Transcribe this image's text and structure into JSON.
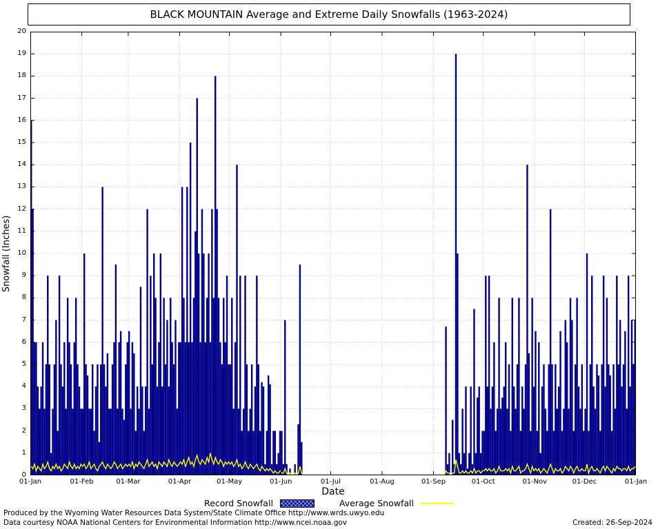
{
  "title": "BLACK MOUNTAIN Average and Extreme Daily Snowfalls (1963-2024)",
  "footer": {
    "line1": "Produced by the Wyoming Water Resources Data System/State Climate Office http://www.wrds.uwyo.edu",
    "line2": "Data courtesy NOAA National Centers for Environmental Information http://www.ncei.noaa.gov",
    "created": "Created: 26-Sep-2024"
  },
  "chart_data": {
    "type": "bar",
    "title": "BLACK MOUNTAIN Average and Extreme Daily Snowfalls (1963-2024)",
    "xlabel": "Date",
    "ylabel": "Snowfall (Inches)",
    "ylim": [
      0,
      20
    ],
    "grid": true,
    "legend_position": "bottom",
    "y_tick_labels": [
      "0",
      "1",
      "2",
      "3",
      "4",
      "5",
      "6",
      "7",
      "8",
      "9",
      "10",
      "11",
      "12",
      "13",
      "14",
      "15",
      "16",
      "17",
      "18",
      "19",
      "20"
    ],
    "x_tick_labels": [
      "01-Jan",
      "01-Feb",
      "01-Mar",
      "01-Apr",
      "01-May",
      "01-Jun",
      "01-Jul",
      "01-Aug",
      "01-Sep",
      "01-Oct",
      "01-Nov",
      "01-Dec",
      "01-Jan"
    ],
    "x_tick_day_index": [
      0,
      31,
      59,
      90,
      120,
      151,
      181,
      212,
      243,
      273,
      304,
      334,
      365
    ],
    "legend": [
      {
        "label": "Record Snowfall",
        "color": "#00008B",
        "type": "bar"
      },
      {
        "label": "Average Snowfall",
        "color": "#FFFF00",
        "type": "line"
      }
    ],
    "series": [
      {
        "name": "Record Snowfall",
        "type": "bar",
        "color": "#00008B",
        "values": [
          16,
          12,
          6,
          6,
          4,
          3,
          4,
          6,
          3,
          5,
          9,
          5,
          1,
          3,
          5,
          7,
          2,
          9,
          5,
          4,
          6,
          3,
          8,
          6,
          5,
          3,
          6,
          8,
          5,
          4,
          3,
          3,
          10,
          5,
          4.5,
          3,
          3,
          5,
          2,
          4,
          5,
          1.5,
          5,
          13,
          5,
          4,
          5.5,
          3,
          3,
          5,
          6,
          9.5,
          3,
          6,
          6.5,
          3,
          2.5,
          5,
          6,
          6.5,
          3,
          6,
          5.5,
          2,
          4,
          3,
          8.5,
          4,
          2,
          4,
          12,
          3,
          9,
          5,
          10,
          8,
          4,
          6,
          10,
          4,
          8,
          5,
          7,
          4,
          8,
          6,
          5,
          7,
          3,
          6,
          6,
          13,
          8,
          6,
          13,
          6,
          15,
          6,
          8,
          11,
          17,
          10,
          6,
          12,
          10,
          6,
          8,
          10,
          6,
          12,
          8,
          18,
          12,
          8,
          6,
          5,
          8,
          6,
          9,
          5,
          5,
          8,
          3,
          6,
          14,
          3,
          9,
          2,
          3,
          9,
          5,
          2,
          3,
          5,
          2,
          4,
          9,
          5,
          2,
          4.2,
          4,
          0.5,
          2,
          4.5,
          4.1,
          0.5,
          2,
          2,
          0.5,
          1,
          2,
          2,
          0.5,
          7,
          0.5,
          0,
          0.3,
          0,
          0,
          0.5,
          0,
          2.3,
          9.5,
          1.5,
          0,
          0,
          0,
          0,
          0,
          0,
          0,
          0,
          0,
          0,
          0,
          0,
          0,
          0,
          0,
          0,
          0,
          0,
          0,
          0,
          0,
          0,
          0,
          0,
          0,
          0,
          0,
          0,
          0,
          0,
          0,
          0,
          0,
          0,
          0,
          0,
          0,
          0,
          0,
          0,
          0,
          0,
          0,
          0,
          0,
          0,
          0,
          0,
          0,
          0,
          0,
          0,
          0,
          0,
          0,
          0,
          0,
          0,
          0,
          0,
          0,
          0,
          0,
          0,
          0,
          0,
          0,
          0,
          0,
          0,
          0,
          0,
          0,
          0,
          0,
          0,
          0,
          0,
          0,
          0,
          0,
          0,
          0,
          0,
          0,
          0,
          6.7,
          0.5,
          1,
          0,
          2.5,
          0.5,
          19,
          10,
          1,
          0.5,
          3,
          1,
          4,
          0.3,
          1,
          4,
          0.5,
          7.5,
          1,
          3.5,
          4,
          1,
          2,
          2,
          9,
          4,
          9,
          3,
          4,
          6,
          2,
          3,
          8,
          3,
          3.5,
          4,
          6,
          3,
          5,
          2,
          8,
          4,
          3,
          5,
          8,
          2,
          4,
          3,
          5,
          14,
          5.5,
          2,
          8,
          4,
          6.5,
          2,
          6,
          1,
          4,
          5,
          3,
          2,
          5,
          12,
          5,
          2,
          5,
          3,
          4,
          6.5,
          2,
          3,
          7,
          6,
          3,
          8,
          7,
          2,
          5,
          8,
          4,
          3,
          5,
          2,
          3,
          10,
          2,
          5,
          9,
          4,
          3,
          5,
          4.5,
          2,
          5,
          9,
          4,
          8,
          5,
          4.5,
          2,
          5,
          3,
          9,
          5,
          7,
          4,
          5,
          6.5,
          3,
          9,
          4,
          7,
          5,
          7
        ]
      },
      {
        "name": "Average Snowfall",
        "type": "line",
        "color": "#FFFF00",
        "values": [
          0.4,
          0.3,
          0.5,
          0.2,
          0.4,
          0.3,
          0.2,
          0.5,
          0.3,
          0.4,
          0.6,
          0.3,
          0.2,
          0.4,
          0.3,
          0.5,
          0.3,
          0.4,
          0.2,
          0.3,
          0.5,
          0.4,
          0.3,
          0.6,
          0.4,
          0.3,
          0.5,
          0.3,
          0.4,
          0.3,
          0.5,
          0.4,
          0.5,
          0.3,
          0.4,
          0.6,
          0.3,
          0.4,
          0.5,
          0.3,
          0.2,
          0.4,
          0.5,
          0.6,
          0.4,
          0.3,
          0.5,
          0.4,
          0.3,
          0.4,
          0.6,
          0.5,
          0.3,
          0.4,
          0.5,
          0.3,
          0.4,
          0.5,
          0.4,
          0.5,
          0.4,
          0.6,
          0.3,
          0.5,
          0.4,
          0.6,
          0.5,
          0.4,
          0.3,
          0.5,
          0.7,
          0.4,
          0.5,
          0.6,
          0.4,
          0.5,
          0.3,
          0.6,
          0.5,
          0.4,
          0.6,
          0.5,
          0.4,
          0.7,
          0.5,
          0.4,
          0.6,
          0.5,
          0.4,
          0.5,
          0.6,
          0.5,
          0.7,
          0.4,
          0.6,
          0.8,
          0.5,
          0.6,
          0.4,
          0.7,
          0.9,
          0.6,
          0.5,
          0.7,
          0.6,
          0.5,
          0.8,
          0.6,
          1,
          0.7,
          0.5,
          0.8,
          0.6,
          0.5,
          0.7,
          0.6,
          0.4,
          0.6,
          0.5,
          0.6,
          0.5,
          0.6,
          0.4,
          0.5,
          0.7,
          0.4,
          0.5,
          0.3,
          0.4,
          0.6,
          0.4,
          0.3,
          0.5,
          0.4,
          0.3,
          0.4,
          0.5,
          0.3,
          0.2,
          0.4,
          0.3,
          0.2,
          0.3,
          0.2,
          0.3,
          0.2,
          0.1,
          0.2,
          0.1,
          0.1,
          0.2,
          0.1,
          0.1,
          0.3,
          0.1,
          0,
          0.1,
          0,
          0,
          0.1,
          0,
          0.1,
          0.4,
          0.1,
          0,
          0,
          0,
          0,
          0,
          0,
          0,
          0,
          0,
          0,
          0,
          0,
          0,
          0,
          0,
          0,
          0,
          0,
          0,
          0,
          0,
          0,
          0,
          0,
          0,
          0,
          0,
          0,
          0,
          0,
          0,
          0,
          0,
          0,
          0,
          0,
          0,
          0,
          0,
          0,
          0,
          0,
          0,
          0,
          0,
          0,
          0,
          0,
          0,
          0,
          0,
          0,
          0,
          0,
          0,
          0,
          0,
          0,
          0,
          0,
          0,
          0,
          0,
          0,
          0,
          0,
          0,
          0,
          0,
          0,
          0,
          0,
          0,
          0,
          0,
          0,
          0,
          0,
          0,
          0,
          0,
          0,
          0,
          0,
          0,
          0,
          0.2,
          0.1,
          0.1,
          0,
          0.1,
          0.1,
          0.7,
          0.4,
          0.1,
          0.1,
          0.2,
          0.1,
          0.2,
          0.1,
          0.1,
          0.2,
          0.1,
          0.3,
          0.1,
          0.2,
          0.2,
          0.1,
          0.2,
          0.2,
          0.3,
          0.2,
          0.3,
          0.2,
          0.2,
          0.3,
          0.1,
          0.2,
          0.4,
          0.2,
          0.2,
          0.2,
          0.3,
          0.2,
          0.3,
          0.1,
          0.4,
          0.2,
          0.2,
          0.3,
          0.4,
          0.1,
          0.2,
          0.2,
          0.3,
          0.5,
          0.3,
          0.1,
          0.4,
          0.2,
          0.3,
          0.2,
          0.3,
          0.1,
          0.2,
          0.3,
          0.2,
          0.1,
          0.3,
          0.5,
          0.3,
          0.1,
          0.3,
          0.2,
          0.2,
          0.3,
          0.1,
          0.2,
          0.4,
          0.3,
          0.2,
          0.4,
          0.3,
          0.1,
          0.3,
          0.4,
          0.2,
          0.2,
          0.3,
          0.2,
          0.2,
          0.5,
          0.1,
          0.3,
          0.4,
          0.2,
          0.2,
          0.3,
          0.2,
          0.1,
          0.3,
          0.4,
          0.2,
          0.4,
          0.3,
          0.2,
          0.1,
          0.3,
          0.2,
          0.4,
          0.3,
          0.3,
          0.2,
          0.3,
          0.3,
          0.2,
          0.4,
          0.2,
          0.3,
          0.3,
          0.4
        ]
      }
    ]
  }
}
